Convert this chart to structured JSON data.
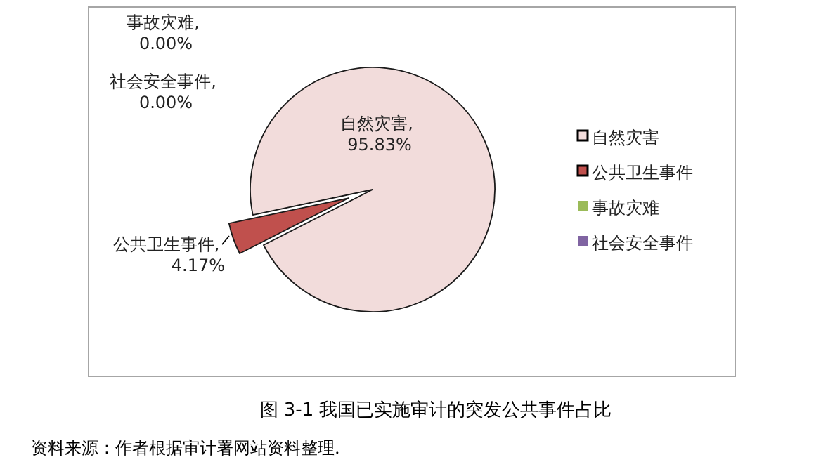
{
  "chart_data": {
    "type": "pie",
    "title": "图 3-1 我国已实施审计的突发公共事件占比",
    "categories": [
      "自然灾害",
      "公共卫生事件",
      "事故灾难",
      "社会安全事件"
    ],
    "values": [
      95.83,
      4.17,
      0.0,
      0.0
    ],
    "colors": [
      "#f2dcdb",
      "#c0504d",
      "#9bbb59",
      "#8064a2"
    ],
    "value_labels": [
      "自然灾害, 95.83%",
      "公共卫生事件, 4.17%",
      "事故灾难, 0.00%",
      "社会安全事件, 0.00%"
    ],
    "legend": "right",
    "annotations": [
      "资料来源：作者根据审计署网站资料整理."
    ]
  }
}
